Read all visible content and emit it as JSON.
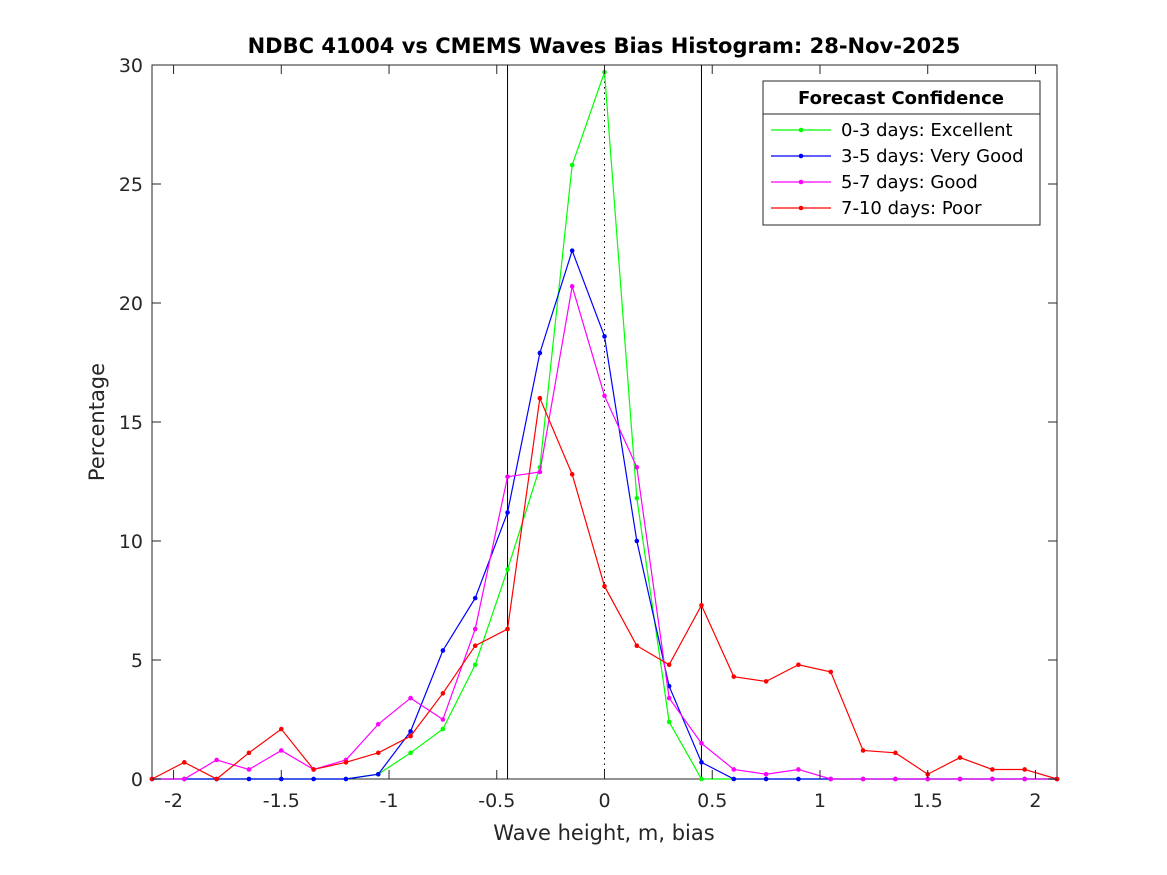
{
  "chart_data": {
    "type": "line",
    "title": "NDBC 41004 vs CMEMS Waves Bias Histogram: 28-Nov-2025",
    "xlabel": "Wave height, m, bias",
    "ylabel": "Percentage",
    "xlim": [
      -2.1,
      2.1
    ],
    "ylim": [
      0,
      30
    ],
    "xticks": [
      -2,
      -1.5,
      -1,
      -0.5,
      0,
      0.5,
      1,
      1.5,
      2
    ],
    "xtick_labels": [
      "-2",
      "-1.5",
      "-1",
      "-0.5",
      "0",
      "0.5",
      "1",
      "1.5",
      "2"
    ],
    "yticks": [
      0,
      5,
      10,
      15,
      20,
      25,
      30
    ],
    "ytick_labels": [
      "0",
      "5",
      "10",
      "15",
      "20",
      "25",
      "30"
    ],
    "grid": false,
    "reference_lines": [
      {
        "x": -0.45,
        "style": "solid",
        "color": "#000000"
      },
      {
        "x": 0,
        "style": "dotted",
        "color": "#000000"
      },
      {
        "x": 0.45,
        "style": "solid",
        "color": "#000000"
      }
    ],
    "legend": {
      "title": "Forecast Confidence",
      "position": "top-right"
    },
    "x": [
      -2.1,
      -1.95,
      -1.8,
      -1.65,
      -1.5,
      -1.35,
      -1.2,
      -1.05,
      -0.9,
      -0.75,
      -0.6,
      -0.45,
      -0.3,
      -0.15,
      0,
      0.15,
      0.3,
      0.45,
      0.6,
      0.75,
      0.9,
      1.05,
      1.2,
      1.35,
      1.5,
      1.65,
      1.8,
      1.95,
      2.1
    ],
    "series": [
      {
        "name": "0-3 days: Excellent",
        "color": "#00ff00",
        "values": [
          0,
          0,
          0,
          0,
          0,
          0,
          0,
          0.2,
          1.1,
          2.1,
          4.8,
          8.8,
          13.1,
          25.8,
          29.7,
          11.8,
          2.4,
          0,
          0,
          0,
          0,
          0,
          0,
          0,
          0,
          0,
          0,
          0,
          0
        ]
      },
      {
        "name": "3-5 days: Very Good",
        "color": "#0000ff",
        "values": [
          0,
          0,
          0,
          0,
          0,
          0,
          0,
          0.2,
          2.0,
          5.4,
          7.6,
          11.2,
          17.9,
          22.2,
          18.6,
          10.0,
          3.9,
          0.7,
          0,
          0,
          0,
          0,
          0,
          0,
          0,
          0,
          0,
          0,
          0
        ]
      },
      {
        "name": "5-7 days: Good",
        "color": "#ff00ff",
        "values": [
          0,
          0,
          0.8,
          0.4,
          1.2,
          0.4,
          0.8,
          2.3,
          3.4,
          2.5,
          6.3,
          12.7,
          12.9,
          20.7,
          16.1,
          13.1,
          3.4,
          1.5,
          0.4,
          0.2,
          0.4,
          0,
          0,
          0,
          0,
          0,
          0,
          0,
          0
        ]
      },
      {
        "name": "7-10 days: Poor",
        "color": "#ff0000",
        "values": [
          0,
          0.7,
          0,
          1.1,
          2.1,
          0.4,
          0.7,
          1.1,
          1.8,
          3.6,
          5.6,
          6.3,
          16.0,
          12.8,
          8.1,
          5.6,
          4.8,
          7.3,
          4.3,
          4.1,
          4.8,
          4.5,
          1.2,
          1.1,
          0.2,
          0.9,
          0.4,
          0.4,
          0
        ]
      }
    ]
  }
}
